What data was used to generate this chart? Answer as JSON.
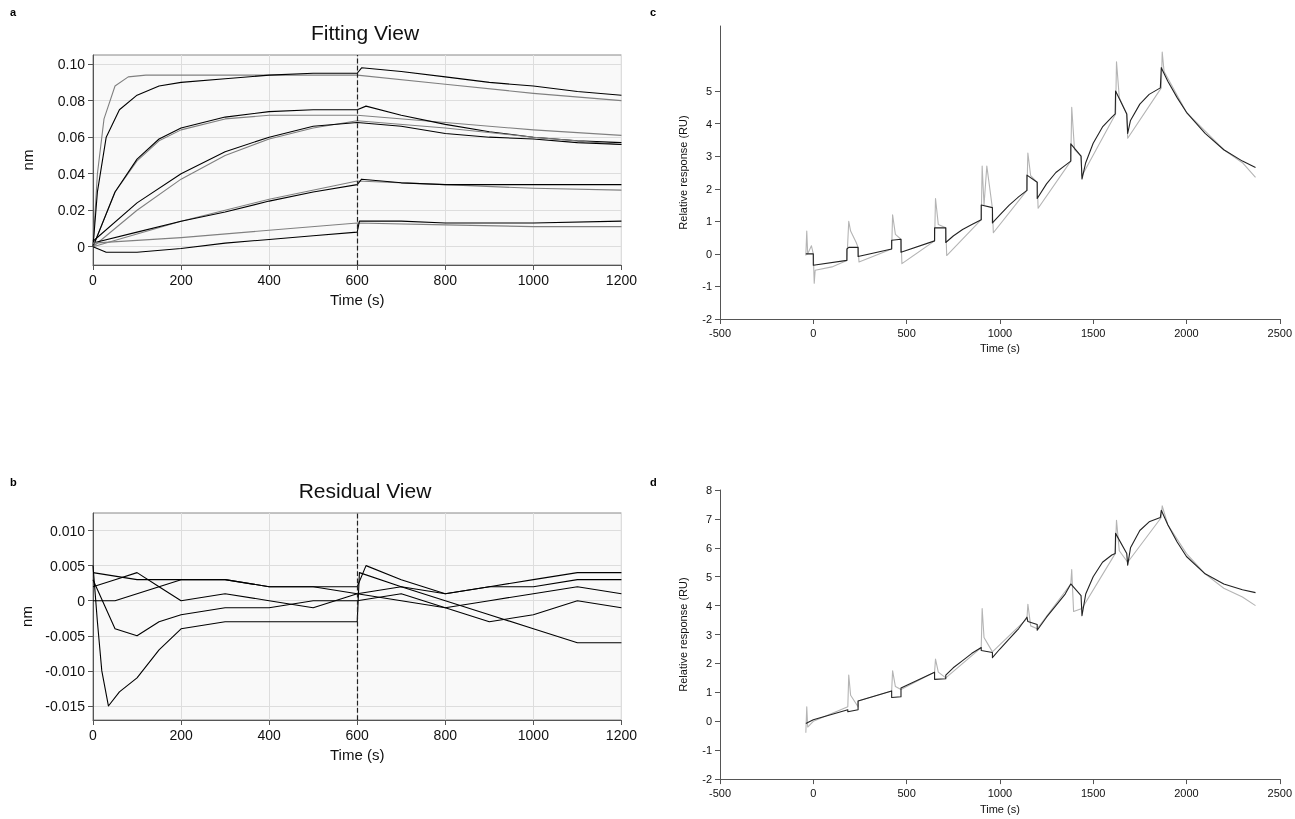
{
  "chart_data": [
    {
      "type": "line",
      "title": "Fitting View",
      "xlabel": "Time (s)",
      "ylabel": "nm",
      "annotations": [
        "a"
      ],
      "xlim": [
        0,
        1200
      ],
      "xticks": [
        0,
        200,
        400,
        600,
        800,
        1000,
        1200
      ],
      "ylim": [
        -0.01,
        0.105
      ],
      "yticks": [
        0,
        0.02,
        0.04,
        0.06,
        0.08,
        {
          "value": 0.1,
          "label": "0.10"
        }
      ],
      "grid": true,
      "ref_lines": [
        {
          "axis": "x",
          "value": 600,
          "line_style": "dashed",
          "color": "#222222"
        }
      ],
      "series": [
        {
          "color": "#808080",
          "x": [
            0,
            10,
            25,
            50,
            80,
            120,
            600,
            800,
            1000,
            1200
          ],
          "values": [
            0,
            0.04,
            0.07,
            0.088,
            0.093,
            0.094,
            0.094,
            0.089,
            0.084,
            0.08
          ]
        },
        {
          "color": "#000000",
          "x": [
            0,
            10,
            30,
            60,
            100,
            150,
            200,
            300,
            400,
            500,
            600,
            610,
            700,
            800,
            900,
            1000,
            1100,
            1200
          ],
          "values": [
            0,
            0.03,
            0.06,
            0.075,
            0.083,
            0.088,
            0.09,
            0.092,
            0.094,
            0.095,
            0.095,
            0.098,
            0.096,
            0.093,
            0.09,
            0.088,
            0.085,
            0.083
          ]
        },
        {
          "color": "#808080",
          "x": [
            0,
            50,
            100,
            150,
            200,
            300,
            400,
            600,
            800,
            1000,
            1200
          ],
          "values": [
            0,
            0.03,
            0.047,
            0.058,
            0.064,
            0.07,
            0.072,
            0.072,
            0.068,
            0.064,
            0.061
          ]
        },
        {
          "color": "#000000",
          "x": [
            0,
            50,
            100,
            150,
            200,
            300,
            400,
            500,
            600,
            620,
            700,
            800,
            900,
            1000,
            1100,
            1200
          ],
          "values": [
            0,
            0.03,
            0.048,
            0.059,
            0.065,
            0.071,
            0.074,
            0.075,
            0.075,
            0.077,
            0.072,
            0.067,
            0.063,
            0.06,
            0.058,
            0.057
          ]
        },
        {
          "color": "#808080",
          "x": [
            0,
            100,
            200,
            300,
            400,
            500,
            600,
            800,
            1000,
            1200
          ],
          "values": [
            0,
            0.02,
            0.037,
            0.05,
            0.059,
            0.065,
            0.069,
            0.065,
            0.06,
            0.056
          ]
        },
        {
          "color": "#000000",
          "x": [
            0,
            100,
            200,
            300,
            400,
            500,
            600,
            700,
            800,
            900,
            1000,
            1100,
            1200
          ],
          "values": [
            0.003,
            0.024,
            0.04,
            0.052,
            0.06,
            0.066,
            0.068,
            0.066,
            0.062,
            0.06,
            0.059,
            0.057,
            0.056
          ]
        },
        {
          "color": "#808080",
          "x": [
            0,
            200,
            400,
            600,
            800,
            1000,
            1200
          ],
          "values": [
            0,
            0.014,
            0.026,
            0.036,
            0.034,
            0.032,
            0.031
          ]
        },
        {
          "color": "#000000",
          "x": [
            0,
            100,
            200,
            300,
            400,
            500,
            600,
            610,
            700,
            800,
            1000,
            1200
          ],
          "values": [
            0.002,
            0.008,
            0.014,
            0.019,
            0.025,
            0.03,
            0.034,
            0.037,
            0.035,
            0.034,
            0.034,
            0.034
          ]
        },
        {
          "color": "#808080",
          "x": [
            0,
            200,
            400,
            600,
            800,
            1000,
            1200
          ],
          "values": [
            0.002,
            0.005,
            0.009,
            0.013,
            0.012,
            0.011,
            0.011
          ]
        },
        {
          "color": "#000000",
          "x": [
            0,
            30,
            100,
            200,
            300,
            400,
            500,
            600,
            605,
            700,
            800,
            1000,
            1200
          ],
          "values": [
            0,
            -0.003,
            -0.003,
            -0.001,
            0.002,
            0.004,
            0.006,
            0.008,
            0.014,
            0.014,
            0.013,
            0.013,
            0.014
          ]
        }
      ]
    },
    {
      "type": "line",
      "title": "Residual View",
      "xlabel": "Time (s)",
      "ylabel": "nm",
      "annotations": [
        "b"
      ],
      "xlim": [
        0,
        1200
      ],
      "xticks": [
        0,
        200,
        400,
        600,
        800,
        1000,
        1200
      ],
      "ylim": [
        -0.017,
        0.0125
      ],
      "yticks": [
        {
          "value": -0.015,
          "label": "-0.015"
        },
        {
          "value": -0.01,
          "label": "-0.010"
        },
        {
          "value": -0.005,
          "label": "-0.005"
        },
        0,
        {
          "value": 0.005,
          "label": "0.005"
        },
        {
          "value": 0.01,
          "label": "0.010"
        }
      ],
      "grid": true,
      "ref_lines": [
        {
          "axis": "x",
          "value": 600,
          "line_style": "dashed",
          "color": "#222222"
        }
      ],
      "series": [
        {
          "color": "#000000",
          "x": [
            0,
            10,
            20,
            35,
            60,
            100,
            150,
            200,
            300,
            400,
            500,
            600,
            605,
            700,
            800,
            900,
            1000,
            1100,
            1200
          ],
          "values": [
            0.005,
            -0.003,
            -0.01,
            -0.015,
            -0.013,
            -0.011,
            -0.007,
            -0.004,
            -0.003,
            -0.003,
            -0.003,
            -0.003,
            0.004,
            0.002,
            0,
            -0.002,
            -0.004,
            -0.006,
            -0.006
          ]
        },
        {
          "color": "#000000",
          "x": [
            0,
            50,
            100,
            150,
            200,
            300,
            400,
            500,
            600,
            700,
            800,
            900,
            1000,
            1100,
            1200
          ],
          "values": [
            0.003,
            -0.004,
            -0.005,
            -0.003,
            -0.002,
            -0.001,
            -0.001,
            0,
            0,
            0.001,
            -0.001,
            -0.003,
            -0.002,
            0,
            -0.001
          ]
        },
        {
          "color": "#000000",
          "x": [
            0,
            50,
            100,
            150,
            200,
            300,
            400,
            500,
            600,
            700,
            800,
            900,
            1000,
            1100,
            1200
          ],
          "values": [
            0.002,
            0.003,
            0.004,
            0.002,
            0,
            0.001,
            0,
            -0.001,
            0.001,
            0,
            -0.001,
            0,
            0.001,
            0.002,
            0.001
          ]
        },
        {
          "color": "#000000",
          "x": [
            0,
            50,
            100,
            200,
            300,
            400,
            500,
            600,
            620,
            700,
            800,
            900,
            1000,
            1100,
            1200
          ],
          "values": [
            0,
            0,
            0.001,
            0.003,
            0.003,
            0.002,
            0.002,
            0.002,
            0.005,
            0.003,
            0.001,
            0.002,
            0.002,
            0.003,
            0.003
          ]
        },
        {
          "color": "#000000",
          "x": [
            0,
            100,
            200,
            300,
            400,
            500,
            600,
            700,
            800,
            900,
            1000,
            1100,
            1200
          ],
          "values": [
            0.004,
            0.003,
            0.003,
            0.003,
            0.002,
            0.002,
            0.001,
            0.002,
            0.001,
            0.002,
            0.003,
            0.004,
            0.004
          ]
        }
      ]
    },
    {
      "type": "line",
      "xlabel": "Time (s)",
      "ylabel": "Relative response (RU)",
      "annotations": [
        "c"
      ],
      "xlim": [
        -500,
        2500
      ],
      "xticks": [
        -500,
        0,
        500,
        1000,
        1500,
        2000,
        2500
      ],
      "ylim": [
        -2,
        7
      ],
      "yticks": [
        -2,
        -1,
        0,
        1,
        2,
        3,
        4,
        5
      ],
      "series": [
        {
          "color": "#b4b4b4",
          "x": [
            -40,
            -35,
            -30,
            -10,
            0,
            5,
            10,
            100,
            180,
            190,
            200,
            230,
            240,
            245,
            420,
            425,
            440,
            470,
            475,
            650,
            655,
            670,
            710,
            715,
            900,
            905,
            915,
            930,
            960,
            965,
            1145,
            1150,
            1165,
            1200,
            1205,
            1380,
            1385,
            1400,
            1435,
            1440,
            1620,
            1625,
            1640,
            1680,
            1685,
            1865,
            1870,
            1880,
            2000,
            2200,
            2300,
            2370
          ],
          "values": [
            -0.05,
            0.7,
            0,
            0.25,
            0,
            -0.9,
            -0.5,
            -0.4,
            -0.2,
            1.0,
            0.7,
            0.35,
            0.2,
            -0.25,
            0.15,
            1.2,
            0.6,
            0.45,
            -0.3,
            0.4,
            1.7,
            0.9,
            0.8,
            -0.05,
            1.05,
            2.7,
            1.5,
            2.7,
            1.4,
            0.65,
            1.95,
            3.1,
            2.4,
            2.2,
            1.4,
            2.85,
            4.5,
            3.2,
            3.0,
            2.4,
            4.3,
            5.9,
            4.8,
            4.3,
            3.55,
            5.1,
            6.2,
            5.6,
            4.35,
            3.2,
            2.8,
            2.35
          ]
        },
        {
          "color": "#222222",
          "x": [
            -40,
            0,
            0,
            180,
            180,
            190,
            240,
            240,
            420,
            420,
            470,
            470,
            650,
            650,
            710,
            710,
            750,
            800,
            850,
            900,
            900,
            960,
            960,
            1000,
            1050,
            1100,
            1145,
            1145,
            1200,
            1200,
            1250,
            1300,
            1350,
            1380,
            1380,
            1435,
            1440,
            1460,
            1500,
            1550,
            1600,
            1618,
            1620,
            1680,
            1685,
            1700,
            1750,
            1800,
            1860,
            1865,
            1900,
            1950,
            2000,
            2100,
            2200,
            2300,
            2370
          ],
          "values": [
            0,
            0,
            -0.35,
            -0.2,
            0.15,
            0.2,
            0.2,
            -0.08,
            0.15,
            0.42,
            0.45,
            0.05,
            0.4,
            0.8,
            0.8,
            0.35,
            0.55,
            0.75,
            0.9,
            1.05,
            1.5,
            1.42,
            0.95,
            1.2,
            1.5,
            1.75,
            1.95,
            2.42,
            2.2,
            1.7,
            2.15,
            2.5,
            2.72,
            2.85,
            3.38,
            3.0,
            2.3,
            2.8,
            3.4,
            3.9,
            4.2,
            4.3,
            5.0,
            4.3,
            3.7,
            4.1,
            4.6,
            4.9,
            5.1,
            5.72,
            5.3,
            4.8,
            4.35,
            3.7,
            3.2,
            2.85,
            2.65
          ]
        }
      ]
    },
    {
      "type": "line",
      "xlabel": "Time (s)",
      "ylabel": "Relative response (RU)",
      "annotations": [
        "d"
      ],
      "xlim": [
        -500,
        2500
      ],
      "xticks": [
        -500,
        0,
        500,
        1000,
        1500,
        2000,
        2500
      ],
      "ylim": [
        -2,
        8
      ],
      "yticks": [
        -2,
        -1,
        0,
        1,
        2,
        3,
        4,
        5,
        6,
        7,
        8
      ],
      "series": [
        {
          "color": "#b4b4b4",
          "x": [
            -40,
            -35,
            -30,
            0,
            185,
            190,
            200,
            240,
            240,
            420,
            425,
            440,
            470,
            650,
            655,
            670,
            710,
            900,
            905,
            915,
            960,
            1145,
            1150,
            1165,
            1200,
            1380,
            1385,
            1395,
            1440,
            1618,
            1625,
            1640,
            1685,
            1865,
            1870,
            1900,
            2000,
            2100,
            2200,
            2300,
            2370
          ],
          "values": [
            -0.4,
            0.5,
            -0.2,
            0,
            0.5,
            1.6,
            0.9,
            0.5,
            0.7,
            1.05,
            1.75,
            1.2,
            1.1,
            1.7,
            2.15,
            1.7,
            1.5,
            2.55,
            3.9,
            2.9,
            2.4,
            3.55,
            4.05,
            3.3,
            3.2,
            4.75,
            5.25,
            3.8,
            3.9,
            5.8,
            6.95,
            5.9,
            5.5,
            7.05,
            7.45,
            6.8,
            5.8,
            5.1,
            4.6,
            4.3,
            4.0
          ]
        },
        {
          "color": "#222222",
          "x": [
            -40,
            0,
            185,
            185,
            240,
            240,
            420,
            420,
            470,
            470,
            650,
            650,
            710,
            710,
            750,
            800,
            850,
            900,
            900,
            960,
            960,
            1000,
            1050,
            1100,
            1145,
            1150,
            1200,
            1200,
            1250,
            1300,
            1350,
            1380,
            1435,
            1440,
            1460,
            1500,
            1550,
            1600,
            1618,
            1620,
            1680,
            1685,
            1700,
            1750,
            1800,
            1860,
            1865,
            1900,
            1950,
            2000,
            2100,
            2200,
            2300,
            2370
          ],
          "values": [
            -0.08,
            0.05,
            0.4,
            0.33,
            0.4,
            0.7,
            1.05,
            0.82,
            0.85,
            1.15,
            1.7,
            1.45,
            1.47,
            1.6,
            1.85,
            2.1,
            2.35,
            2.55,
            2.45,
            2.38,
            2.2,
            2.5,
            2.85,
            3.2,
            3.6,
            3.45,
            3.35,
            3.15,
            3.6,
            4.0,
            4.4,
            4.75,
            4.35,
            3.65,
            4.4,
            5.0,
            5.5,
            5.75,
            5.8,
            6.5,
            5.8,
            5.4,
            6.0,
            6.6,
            6.9,
            7.05,
            7.3,
            6.8,
            6.2,
            5.7,
            5.1,
            4.75,
            4.55,
            4.45
          ]
        }
      ]
    }
  ]
}
